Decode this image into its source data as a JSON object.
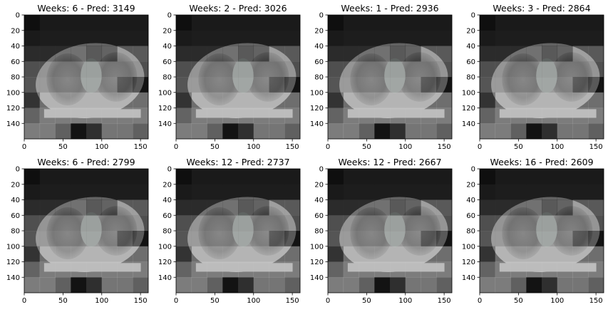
{
  "chart_data": {
    "type": "heatmap",
    "panel_kind": "CT slice with 8x8 attention overlay",
    "xlim": [
      0,
      160
    ],
    "ylim": [
      0,
      160
    ],
    "xticks": [
      0,
      50,
      100,
      150
    ],
    "yticks": [
      0,
      20,
      40,
      60,
      80,
      100,
      120,
      140
    ],
    "grid": false,
    "colormap": "gray",
    "overlay_grid": [
      [
        0.02,
        0.1,
        0.1,
        0.1,
        0.1,
        0.1,
        0.1,
        0.1
      ],
      [
        0.1,
        0.12,
        0.12,
        0.12,
        0.12,
        0.12,
        0.12,
        0.12
      ],
      [
        0.22,
        0.22,
        0.22,
        0.22,
        0.05,
        0.12,
        0.55,
        0.55
      ],
      [
        0.48,
        0.48,
        0.48,
        0.48,
        0.48,
        0.48,
        0.48,
        0.48
      ],
      [
        0.52,
        0.52,
        0.52,
        0.52,
        0.52,
        0.55,
        0.25,
        0.05
      ],
      [
        0.28,
        0.7,
        0.7,
        0.7,
        0.7,
        0.7,
        0.7,
        0.7
      ],
      [
        0.62,
        0.8,
        0.8,
        0.8,
        0.8,
        0.8,
        0.8,
        0.8
      ],
      [
        0.8,
        0.8,
        0.6,
        0.05,
        0.25,
        0.75,
        0.75,
        0.6
      ]
    ],
    "panels": [
      {
        "title": "Weeks: 6 - Pred: 3149",
        "weeks": 6,
        "pred": 3149
      },
      {
        "title": "Weeks: 2 - Pred: 3026",
        "weeks": 2,
        "pred": 3026
      },
      {
        "title": "Weeks: 1 - Pred: 2936",
        "weeks": 1,
        "pred": 2936
      },
      {
        "title": "Weeks: 3 - Pred: 2864",
        "weeks": 3,
        "pred": 2864
      },
      {
        "title": "Weeks: 6 - Pred: 2799",
        "weeks": 6,
        "pred": 2799
      },
      {
        "title": "Weeks: 12 - Pred: 2737",
        "weeks": 12,
        "pred": 2737
      },
      {
        "title": "Weeks: 12 - Pred: 2667",
        "weeks": 12,
        "pred": 2667
      },
      {
        "title": "Weeks: 16 - Pred: 2609",
        "weeks": 16,
        "pred": 2609
      }
    ]
  }
}
